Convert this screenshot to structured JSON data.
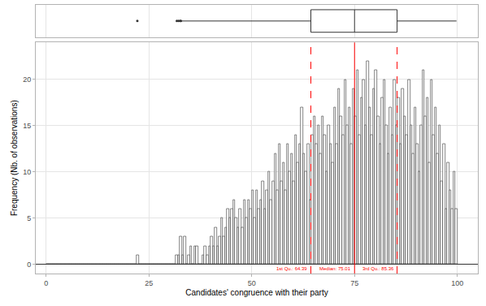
{
  "chart_data": {
    "type": "histogram",
    "x_label": "Candidates' congruence with their party",
    "y_label": "Frequency (Nb. of observations)",
    "color": "#ffffff",
    "grid": true,
    "bins": [
      0,
      0.5,
      1,
      1.5,
      2,
      2.5,
      3,
      3.5,
      4,
      4.5,
      5,
      5.5,
      6,
      6.5,
      7,
      7.5,
      8,
      8.5,
      9,
      9.5,
      10,
      10.5,
      11,
      11.5,
      12,
      12.5,
      13,
      13.5,
      14,
      14.5,
      15,
      15.5,
      16,
      16.5,
      17,
      17.5,
      18,
      18.5,
      19,
      19.5,
      20,
      20.5,
      21,
      21.5,
      22,
      22.5,
      23,
      23.5,
      24,
      24.5,
      25,
      25.5,
      26,
      26.5,
      27,
      27.5,
      28,
      28.5,
      29,
      29.5,
      30,
      30.5,
      31,
      31.5,
      32,
      32.5,
      33,
      33.5,
      34,
      34.5,
      35,
      35.5,
      36,
      36.5,
      37,
      37.5,
      38,
      38.5,
      39,
      39.5,
      40,
      40.5,
      41,
      41.5,
      42,
      42.5,
      43,
      43.5,
      44,
      44.5,
      45,
      45.5,
      46,
      46.5,
      47,
      47.5,
      48,
      48.5,
      49,
      49.5,
      50,
      50.5,
      51,
      51.5,
      52,
      52.5,
      53,
      53.5,
      54,
      54.5,
      55,
      55.5,
      56,
      56.5,
      57,
      57.5,
      58,
      58.5,
      59,
      59.5,
      60,
      60.5,
      61,
      61.5,
      62,
      62.5,
      63,
      63.5,
      64,
      64.5,
      65,
      65.5,
      66,
      66.5,
      67,
      67.5,
      68,
      68.5,
      69,
      69.5,
      70,
      70.5,
      71,
      71.5,
      72,
      72.5,
      73,
      73.5,
      74,
      74.5,
      75,
      75.5,
      76,
      76.5,
      77,
      77.5,
      78,
      78.5,
      79,
      79.5,
      80,
      80.5,
      81,
      81.5,
      82,
      82.5,
      83,
      83.5,
      84,
      84.5,
      85,
      85.5,
      86,
      86.5,
      87,
      87.5,
      88,
      88.5,
      89,
      89.5,
      90,
      90.5,
      91,
      91.5,
      92,
      92.5,
      93,
      93.5,
      94,
      94.5,
      95,
      95.5,
      96,
      96.5,
      97,
      97.5,
      98,
      98.5,
      99,
      99.5,
      100
    ],
    "counts": [
      0,
      0,
      0,
      0,
      0,
      0,
      0,
      0,
      0,
      0,
      0,
      0,
      0,
      0,
      0,
      0,
      0,
      0,
      0,
      0,
      0,
      0,
      0,
      0,
      0,
      0,
      0,
      0,
      0,
      0,
      0,
      0,
      0,
      0,
      0,
      0,
      0,
      0,
      0,
      0,
      0,
      0,
      0,
      0,
      1,
      0,
      0,
      0,
      0,
      0,
      0,
      0,
      0,
      0,
      0,
      0,
      0,
      0,
      0,
      0,
      0,
      0,
      0,
      1,
      1,
      3,
      1,
      3,
      0,
      1,
      2,
      0,
      2,
      2,
      0,
      0,
      1,
      2,
      1,
      2,
      3,
      2,
      4,
      2,
      3,
      5,
      3,
      4,
      6,
      5,
      6,
      7,
      5,
      4,
      6,
      4,
      7,
      5,
      7,
      6,
      8,
      5,
      8,
      6,
      7,
      9,
      6,
      8,
      10,
      7,
      9,
      12,
      8,
      13,
      9,
      11,
      8,
      13,
      10,
      12,
      9,
      14,
      11,
      13,
      17,
      12,
      10,
      13,
      7,
      14,
      16,
      13,
      15,
      12,
      16,
      14,
      10,
      15,
      13,
      11,
      17,
      13,
      19,
      16,
      14,
      20,
      15,
      17,
      13,
      19,
      16,
      21,
      14,
      18,
      20,
      15,
      22,
      17,
      14,
      19,
      21,
      16,
      13,
      18,
      20,
      15,
      12,
      17,
      14,
      20,
      15,
      18,
      13,
      19,
      16,
      14,
      20,
      15,
      12,
      17,
      13,
      10,
      15,
      21,
      16,
      18,
      11,
      20,
      14,
      17,
      12,
      15,
      9,
      13,
      6,
      11,
      8,
      6,
      10,
      6
    ],
    "xlim": [
      -2.5,
      105
    ],
    "xticks": [
      0,
      25,
      50,
      75,
      100
    ],
    "ylim": [
      -1,
      24
    ],
    "yticks": [
      0,
      5,
      10,
      15,
      20
    ],
    "box": {
      "q1": 64.39,
      "median": 75.01,
      "q3": 85.36,
      "lowerfence": 32.9,
      "upperfence": 99.8,
      "outliers": [
        22.2,
        31.8,
        32.2,
        32.6,
        32.8
      ]
    },
    "quartile_labels": [
      "1st Qu.: 64.39",
      "Median: 75.01",
      "3rd Qu.: 85.36"
    ]
  }
}
